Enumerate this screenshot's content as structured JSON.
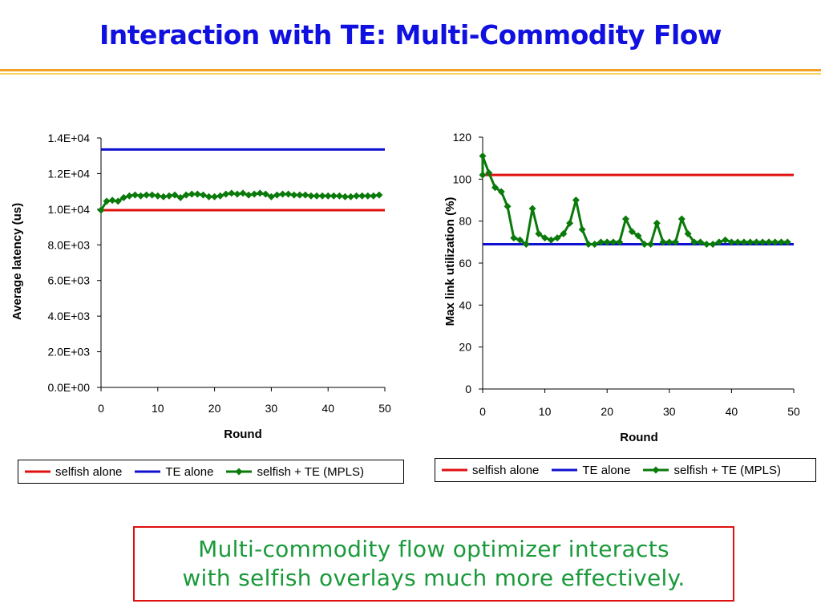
{
  "slide": {
    "title": "Interaction with TE: Multi-Commodity Flow",
    "callout_lines": [
      "Multi-commodity flow optimizer interacts",
      "with selfish overlays much more effectively."
    ]
  },
  "colors": {
    "title": "#1010e0",
    "selfish_alone": "#e01010",
    "te_alone": "#1010d0",
    "selfish_te": "#0a7a0a",
    "callout_text": "#1a9a3a",
    "callout_border": "#e01010"
  },
  "chart_data": [
    {
      "type": "line",
      "xlabel": "Round",
      "ylabel": "Average latency (us)",
      "xlim": [
        0,
        50
      ],
      "ylim": [
        0,
        14000
      ],
      "x_ticks": [
        0,
        10,
        20,
        30,
        40,
        50
      ],
      "y_ticks": [
        "0.0E+00",
        "2.0E+03",
        "4.0E+03",
        "6.0E+03",
        "8.0E+03",
        "1.0E+04",
        "1.2E+04",
        "1.4E+04"
      ],
      "grid": false,
      "legend_position": "bottom",
      "series": [
        {
          "name": "selfish alone",
          "color": "#e01010",
          "marker": "none",
          "x": [
            0,
            50
          ],
          "y": [
            9950,
            9950
          ]
        },
        {
          "name": "TE alone",
          "color": "#1010d0",
          "marker": "none",
          "x": [
            0,
            50
          ],
          "y": [
            13350,
            13350
          ]
        },
        {
          "name": "selfish + TE (MPLS)",
          "color": "#0a7a0a",
          "marker": "diamond",
          "x": [
            0,
            1,
            2,
            3,
            4,
            5,
            6,
            7,
            8,
            9,
            10,
            11,
            12,
            13,
            14,
            15,
            16,
            17,
            18,
            19,
            20,
            21,
            22,
            23,
            24,
            25,
            26,
            27,
            28,
            29,
            30,
            31,
            32,
            33,
            34,
            35,
            36,
            37,
            38,
            39,
            40,
            41,
            42,
            43,
            44,
            45,
            46,
            47,
            48,
            49
          ],
          "y": [
            9950,
            10450,
            10500,
            10450,
            10650,
            10750,
            10800,
            10750,
            10800,
            10800,
            10750,
            10700,
            10750,
            10800,
            10650,
            10800,
            10850,
            10850,
            10800,
            10700,
            10700,
            10750,
            10850,
            10900,
            10850,
            10900,
            10800,
            10850,
            10900,
            10850,
            10700,
            10800,
            10850,
            10850,
            10800,
            10800,
            10800,
            10750,
            10750,
            10750,
            10750,
            10750,
            10750,
            10700,
            10700,
            10750,
            10750,
            10750,
            10750,
            10800
          ]
        }
      ]
    },
    {
      "type": "line",
      "xlabel": "Round",
      "ylabel": "Max link utilization (%)",
      "xlim": [
        0,
        50
      ],
      "ylim": [
        0,
        120
      ],
      "x_ticks": [
        0,
        10,
        20,
        30,
        40,
        50
      ],
      "y_ticks": [
        "0",
        "20",
        "40",
        "60",
        "80",
        "100",
        "120"
      ],
      "grid": false,
      "legend_position": "bottom",
      "series": [
        {
          "name": "selfish alone",
          "color": "#e01010",
          "marker": "none",
          "x": [
            0,
            50
          ],
          "y": [
            102,
            102
          ]
        },
        {
          "name": "TE alone",
          "color": "#1010d0",
          "marker": "none",
          "x": [
            0,
            50
          ],
          "y": [
            69,
            69
          ]
        },
        {
          "name": "selfish + TE (MPLS)",
          "color": "#0a7a0a",
          "marker": "diamond",
          "x": [
            0,
            0,
            1,
            2,
            3,
            4,
            5,
            6,
            7,
            8,
            9,
            10,
            11,
            12,
            13,
            14,
            15,
            16,
            17,
            18,
            19,
            20,
            21,
            22,
            23,
            24,
            25,
            26,
            27,
            28,
            29,
            30,
            31,
            32,
            33,
            34,
            35,
            36,
            37,
            38,
            39,
            40,
            41,
            42,
            43,
            44,
            45,
            46,
            47,
            48,
            49
          ],
          "y": [
            102,
            111,
            103,
            96,
            94,
            87,
            72,
            71,
            69,
            86,
            74,
            72,
            71,
            72,
            74,
            79,
            90,
            76,
            69,
            69,
            70,
            70,
            70,
            70,
            81,
            75,
            73,
            69,
            69,
            79,
            70,
            70,
            70,
            81,
            74,
            70,
            70,
            69,
            69,
            70,
            71,
            70,
            70,
            70,
            70,
            70,
            70,
            70,
            70,
            70,
            70
          ]
        }
      ]
    }
  ]
}
